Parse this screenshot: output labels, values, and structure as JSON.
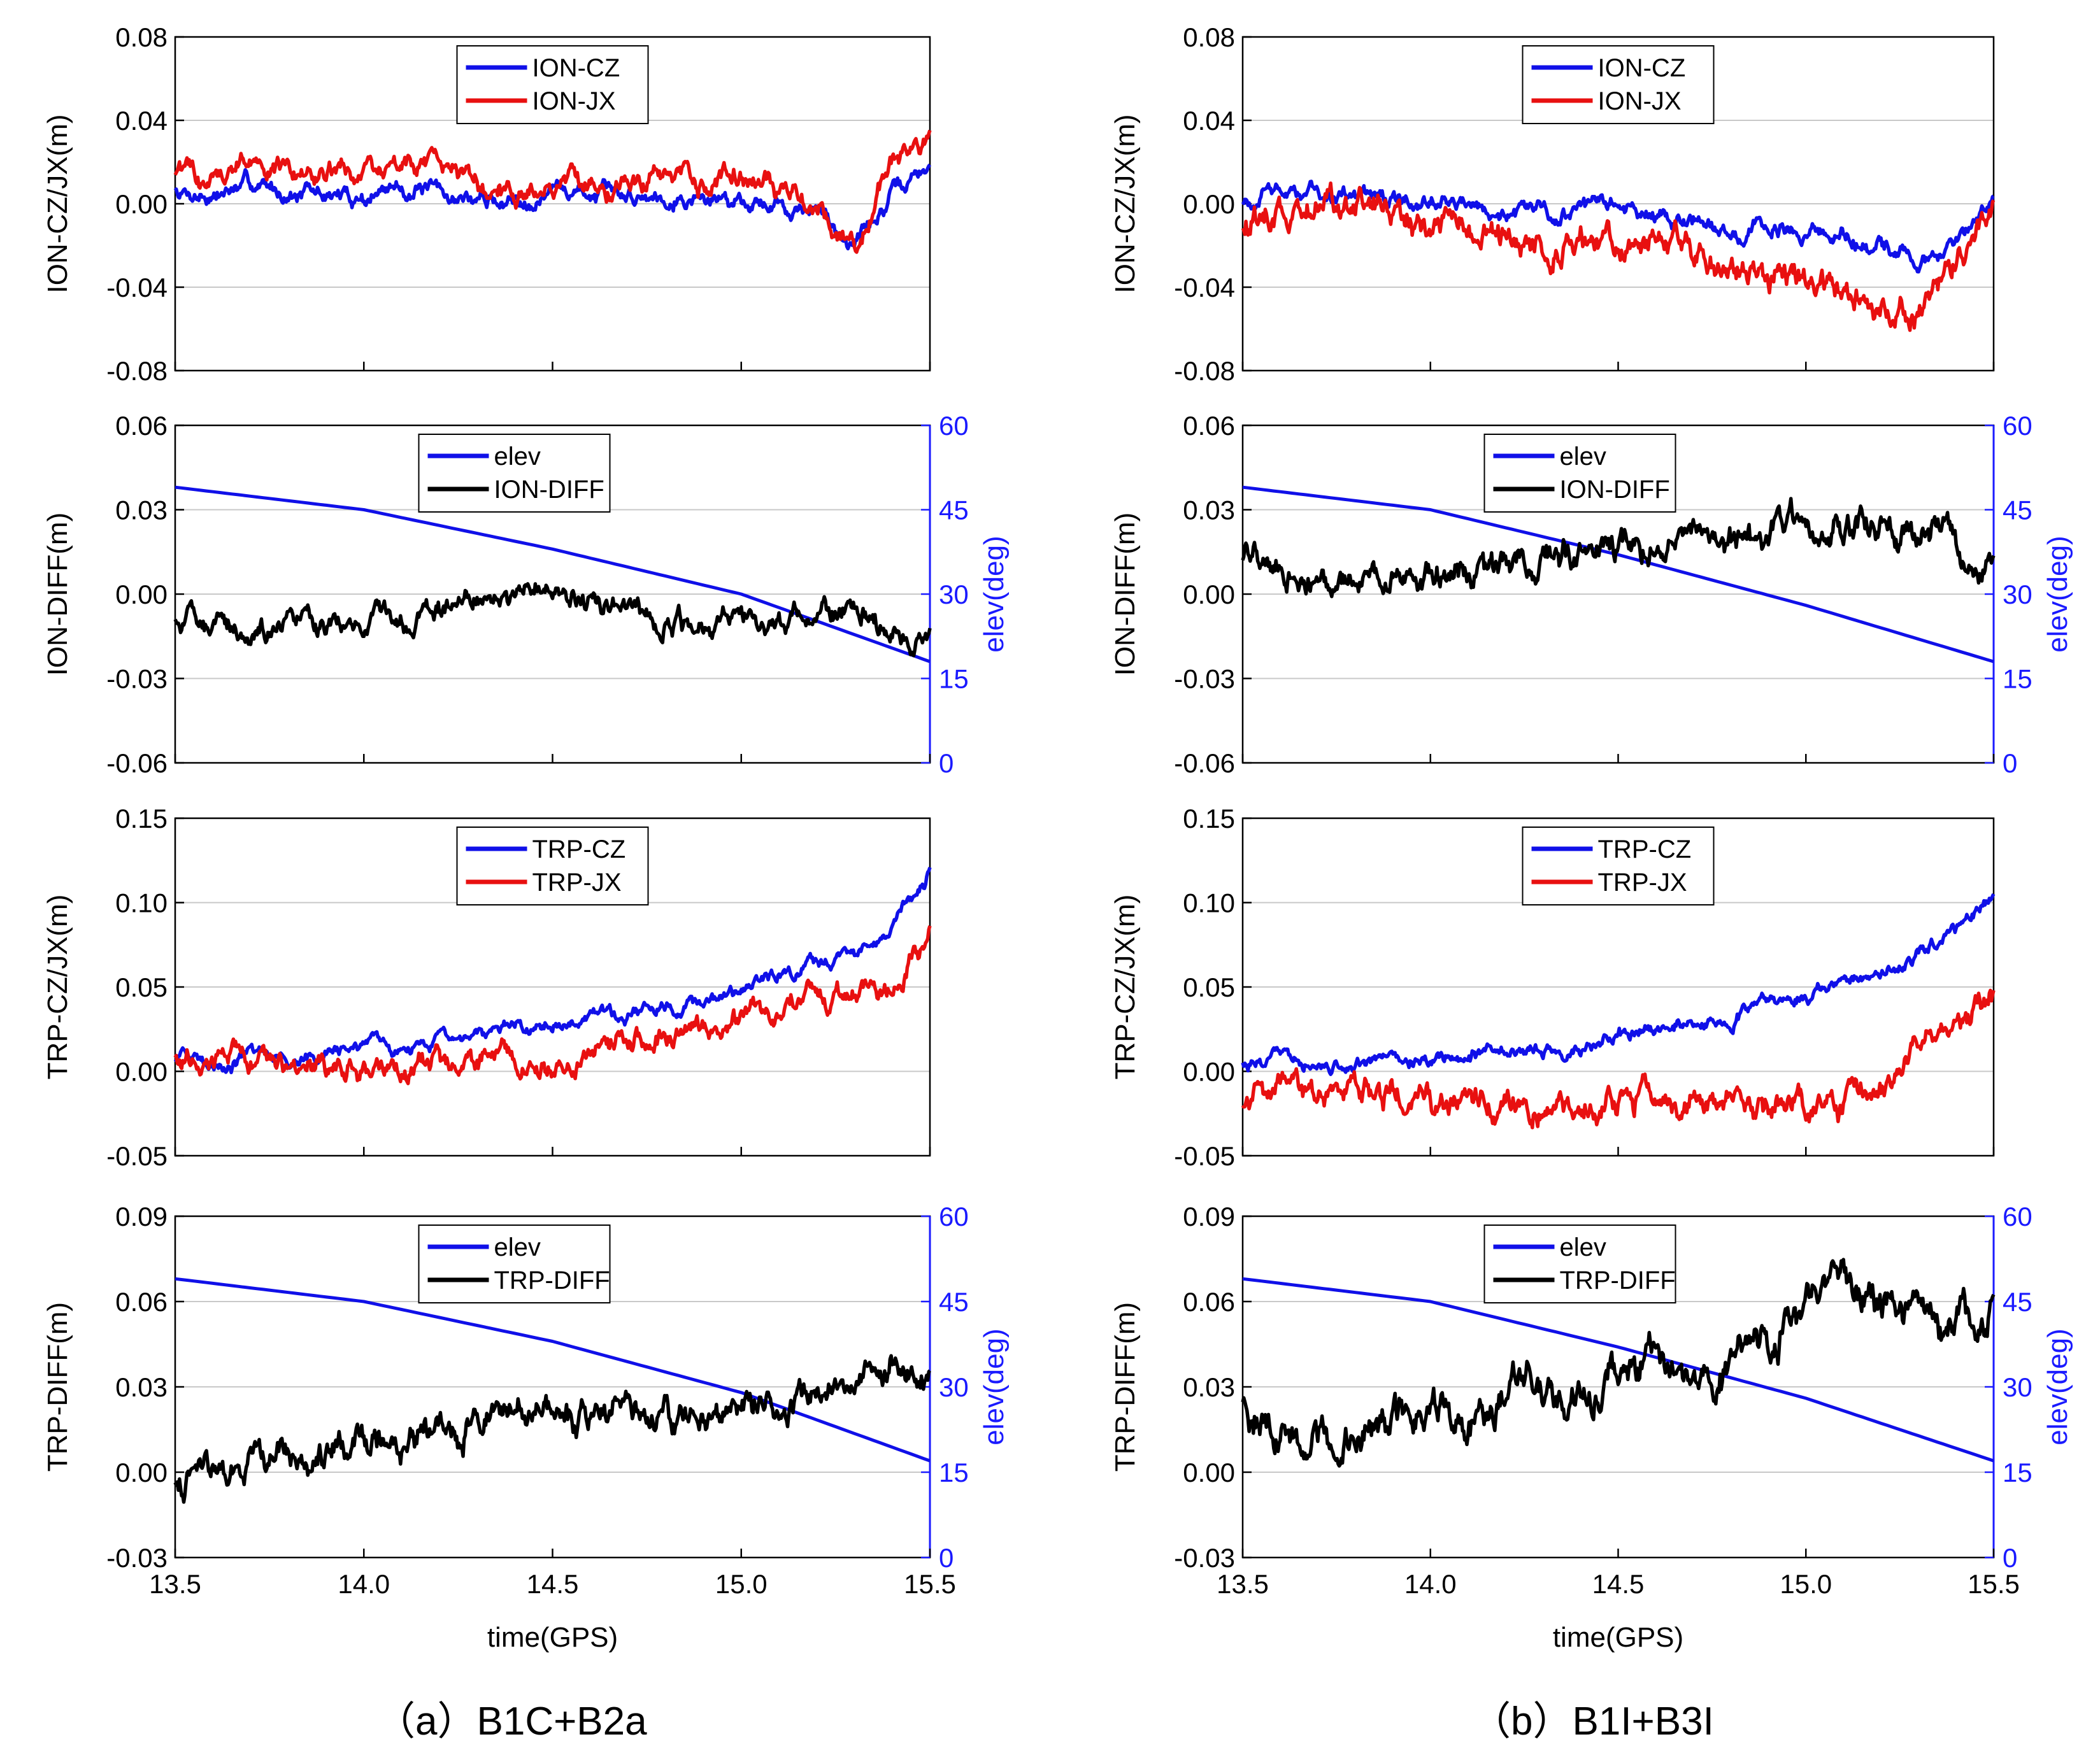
{
  "figure": {
    "captions": [
      "（a）B1C+B2a",
      "（b）B1I+B3I"
    ],
    "x_axis": {
      "label": "time(GPS)",
      "range": [
        13.5,
        15.5
      ],
      "ticks": [
        13.5,
        14.0,
        14.5,
        15.0,
        15.5
      ],
      "tick_labels": [
        "13.5",
        "14.0",
        "14.5",
        "15.0",
        "15.5"
      ]
    },
    "colors": {
      "cz": "#1010e8",
      "jx": "#e81010",
      "diff": "#000000",
      "elev": "#1010e8",
      "right_axis": "#1a1aff"
    }
  },
  "chart_data": [
    {
      "type": "line",
      "panel": "a1",
      "column": "a",
      "row": 0,
      "ylabel": "ION-CZ/JX(m)",
      "ylim": [
        -0.08,
        0.08
      ],
      "yticks": [
        -0.08,
        -0.04,
        0.0,
        0.04,
        0.08
      ],
      "ytick_labels": [
        "-0.08",
        "-0.04",
        "0.00",
        "0.04",
        "0.08"
      ],
      "legend": "top-center",
      "series": [
        {
          "name": "ION-CZ",
          "color": "#1010e8",
          "x": [
            13.5,
            13.6,
            13.7,
            13.8,
            13.9,
            14.0,
            14.1,
            14.2,
            14.3,
            14.4,
            14.5,
            14.6,
            14.7,
            14.8,
            14.9,
            15.0,
            15.1,
            15.2,
            15.3,
            15.4,
            15.5
          ],
          "y": [
            0.007,
            0.004,
            0.009,
            0.006,
            0.004,
            0.003,
            0.008,
            0.004,
            0.002,
            0.001,
            0.007,
            0.005,
            0.003,
            0.005,
            0.002,
            0.003,
            0.0,
            -0.005,
            -0.018,
            0.003,
            0.018
          ],
          "noise": 0.003
        },
        {
          "name": "ION-JX",
          "color": "#e81010",
          "x": [
            13.5,
            13.6,
            13.7,
            13.8,
            13.9,
            14.0,
            14.1,
            14.2,
            14.3,
            14.4,
            14.5,
            14.6,
            14.7,
            14.8,
            14.9,
            15.0,
            15.1,
            15.2,
            15.3,
            15.4,
            15.5
          ],
          "y": [
            0.015,
            0.012,
            0.021,
            0.017,
            0.014,
            0.013,
            0.018,
            0.013,
            0.009,
            0.005,
            0.012,
            0.009,
            0.01,
            0.014,
            0.01,
            0.012,
            0.01,
            -0.002,
            -0.018,
            0.02,
            0.034
          ],
          "noise": 0.004
        }
      ]
    },
    {
      "type": "line",
      "panel": "a2",
      "column": "a",
      "row": 1,
      "ylabel": "ION-DIFF(m)",
      "ylim": [
        -0.06,
        0.06
      ],
      "yticks": [
        -0.06,
        -0.03,
        0.0,
        0.03,
        0.06
      ],
      "ytick_labels": [
        "-0.06",
        "-0.03",
        "0.00",
        "0.03",
        "0.06"
      ],
      "y2label": "elev(deg)",
      "y2lim": [
        0,
        60
      ],
      "y2ticks": [
        0,
        15,
        30,
        45,
        60
      ],
      "y2tick_labels": [
        "0",
        "15",
        "30",
        "45",
        "60"
      ],
      "legend": "top-center",
      "series": [
        {
          "name": "elev",
          "color": "#1010e8",
          "axis": "right",
          "x": [
            13.5,
            14.0,
            14.5,
            15.0,
            15.5
          ],
          "y": [
            49,
            45,
            38,
            30,
            18
          ],
          "noise": 0
        },
        {
          "name": "ION-DIFF",
          "color": "#000000",
          "x": [
            13.5,
            13.6,
            13.7,
            13.8,
            13.9,
            14.0,
            14.1,
            14.2,
            14.3,
            14.4,
            14.5,
            14.6,
            14.7,
            14.8,
            14.9,
            15.0,
            15.1,
            15.2,
            15.3,
            15.4,
            15.5
          ],
          "y": [
            -0.008,
            -0.01,
            -0.013,
            -0.011,
            -0.01,
            -0.01,
            -0.008,
            -0.005,
            -0.003,
            -0.002,
            0.002,
            -0.003,
            -0.006,
            -0.01,
            -0.012,
            -0.006,
            -0.01,
            -0.008,
            -0.004,
            -0.01,
            -0.015
          ],
          "noise": 0.003
        }
      ]
    },
    {
      "type": "line",
      "panel": "a3",
      "column": "a",
      "row": 2,
      "ylabel": "TRP-CZ/JX(m)",
      "ylim": [
        -0.05,
        0.15
      ],
      "yticks": [
        -0.05,
        0.0,
        0.05,
        0.1,
        0.15
      ],
      "ytick_labels": [
        "-0.05",
        "0.00",
        "0.05",
        "0.10",
        "0.15"
      ],
      "legend": "top-center",
      "series": [
        {
          "name": "TRP-CZ",
          "color": "#1010e8",
          "x": [
            13.5,
            13.6,
            13.7,
            13.8,
            13.9,
            14.0,
            14.1,
            14.2,
            14.3,
            14.4,
            14.5,
            14.6,
            14.7,
            14.8,
            14.9,
            15.0,
            15.1,
            15.2,
            15.3,
            15.4,
            15.5
          ],
          "y": [
            0.008,
            0.005,
            0.008,
            0.009,
            0.01,
            0.012,
            0.015,
            0.018,
            0.022,
            0.025,
            0.028,
            0.03,
            0.034,
            0.038,
            0.04,
            0.048,
            0.055,
            0.062,
            0.07,
            0.085,
            0.118
          ],
          "noise": 0.003
        },
        {
          "name": "TRP-JX",
          "color": "#e81010",
          "x": [
            13.5,
            13.6,
            13.7,
            13.8,
            13.9,
            14.0,
            14.1,
            14.2,
            14.3,
            14.4,
            14.5,
            14.6,
            14.7,
            14.8,
            14.9,
            15.0,
            15.1,
            15.2,
            15.3,
            15.4,
            15.5
          ],
          "y": [
            0.01,
            0.004,
            0.01,
            0.005,
            0.003,
            0.002,
            0.003,
            0.002,
            0.004,
            0.008,
            0.0,
            0.012,
            0.015,
            0.02,
            0.025,
            0.03,
            0.04,
            0.045,
            0.05,
            0.045,
            0.085
          ],
          "noise": 0.005
        }
      ]
    },
    {
      "type": "line",
      "panel": "a4",
      "column": "a",
      "row": 3,
      "ylabel": "TRP-DIFF(m)",
      "ylim": [
        -0.03,
        0.09
      ],
      "yticks": [
        -0.03,
        0.0,
        0.03,
        0.06,
        0.09
      ],
      "ytick_labels": [
        "-0.03",
        "0.00",
        "0.03",
        "0.06",
        "0.09"
      ],
      "y2label": "elev(deg)",
      "y2lim": [
        0,
        60
      ],
      "y2ticks": [
        0,
        15,
        30,
        45,
        60
      ],
      "y2tick_labels": [
        "0",
        "15",
        "30",
        "45",
        "60"
      ],
      "legend": "top-center",
      "series": [
        {
          "name": "elev",
          "color": "#1010e8",
          "axis": "right",
          "x": [
            13.5,
            14.0,
            14.5,
            15.0,
            15.5
          ],
          "y": [
            49,
            45,
            38,
            29,
            17
          ],
          "noise": 0
        },
        {
          "name": "TRP-DIFF",
          "color": "#000000",
          "x": [
            13.5,
            13.6,
            13.7,
            13.8,
            13.9,
            14.0,
            14.1,
            14.2,
            14.3,
            14.4,
            14.5,
            14.6,
            14.7,
            14.8,
            14.9,
            15.0,
            15.1,
            15.2,
            15.3,
            15.4,
            15.5
          ],
          "y": [
            -0.002,
            0.003,
            0.001,
            0.005,
            0.008,
            0.01,
            0.012,
            0.016,
            0.018,
            0.022,
            0.02,
            0.018,
            0.022,
            0.02,
            0.018,
            0.02,
            0.025,
            0.028,
            0.032,
            0.038,
            0.035
          ],
          "noise": 0.004
        }
      ]
    },
    {
      "type": "line",
      "panel": "b1",
      "column": "b",
      "row": 0,
      "ylabel": "ION-CZ/JX(m)",
      "ylim": [
        -0.08,
        0.08
      ],
      "yticks": [
        -0.08,
        -0.04,
        0.0,
        0.04,
        0.08
      ],
      "ytick_labels": [
        "-0.08",
        "-0.04",
        "0.00",
        "0.04",
        "0.08"
      ],
      "legend": "top-center",
      "series": [
        {
          "name": "ION-CZ",
          "color": "#1010e8",
          "x": [
            13.5,
            13.6,
            13.7,
            13.8,
            13.9,
            14.0,
            14.1,
            14.2,
            14.3,
            14.4,
            14.5,
            14.6,
            14.7,
            14.8,
            14.9,
            15.0,
            15.1,
            15.2,
            15.3,
            15.4,
            15.5
          ],
          "y": [
            0.002,
            0.003,
            0.005,
            0.002,
            0.0,
            -0.002,
            0.001,
            -0.003,
            -0.005,
            -0.004,
            -0.002,
            -0.005,
            -0.008,
            -0.012,
            -0.01,
            -0.012,
            -0.015,
            -0.02,
            -0.025,
            -0.02,
            0.005
          ],
          "noise": 0.003
        },
        {
          "name": "ION-JX",
          "color": "#e81010",
          "x": [
            13.5,
            13.6,
            13.7,
            13.8,
            13.9,
            14.0,
            14.1,
            14.2,
            14.3,
            14.4,
            14.5,
            14.6,
            14.7,
            14.8,
            14.9,
            15.0,
            15.1,
            15.2,
            15.3,
            15.4,
            15.5
          ],
          "y": [
            -0.012,
            -0.005,
            0.002,
            0.0,
            -0.005,
            -0.01,
            -0.008,
            -0.018,
            -0.02,
            -0.015,
            -0.022,
            -0.015,
            -0.022,
            -0.03,
            -0.035,
            -0.04,
            -0.042,
            -0.05,
            -0.052,
            -0.03,
            0.0
          ],
          "noise": 0.005
        }
      ]
    },
    {
      "type": "line",
      "panel": "b2",
      "column": "b",
      "row": 1,
      "ylabel": "ION-DIFF(m)",
      "ylim": [
        -0.06,
        0.06
      ],
      "yticks": [
        -0.06,
        -0.03,
        0.0,
        0.03,
        0.06
      ],
      "ytick_labels": [
        "-0.06",
        "-0.03",
        "0.00",
        "0.03",
        "0.06"
      ],
      "y2label": "elev(deg)",
      "y2lim": [
        0,
        60
      ],
      "y2ticks": [
        0,
        15,
        30,
        45,
        60
      ],
      "y2tick_labels": [
        "0",
        "15",
        "30",
        "45",
        "60"
      ],
      "legend": "top-center",
      "series": [
        {
          "name": "elev",
          "color": "#1010e8",
          "axis": "right",
          "x": [
            13.5,
            14.0,
            14.5,
            15.0,
            15.5
          ],
          "y": [
            49,
            45,
            37,
            28,
            18
          ],
          "noise": 0
        },
        {
          "name": "ION-DIFF",
          "color": "#000000",
          "x": [
            13.5,
            13.6,
            13.7,
            13.8,
            13.9,
            14.0,
            14.1,
            14.2,
            14.3,
            14.4,
            14.5,
            14.6,
            14.7,
            14.8,
            14.9,
            15.0,
            15.1,
            15.2,
            15.3,
            15.4,
            15.5
          ],
          "y": [
            0.012,
            0.007,
            0.002,
            0.003,
            0.005,
            0.008,
            0.005,
            0.01,
            0.012,
            0.015,
            0.014,
            0.018,
            0.02,
            0.018,
            0.022,
            0.025,
            0.025,
            0.024,
            0.022,
            0.015,
            0.008
          ],
          "noise": 0.004
        }
      ]
    },
    {
      "type": "line",
      "panel": "b3",
      "column": "b",
      "row": 2,
      "ylabel": "TRP-CZ/JX(m)",
      "ylim": [
        -0.05,
        0.15
      ],
      "yticks": [
        -0.05,
        0.0,
        0.05,
        0.1,
        0.15
      ],
      "ytick_labels": [
        "-0.05",
        "0.00",
        "0.05",
        "0.10",
        "0.15"
      ],
      "legend": "top-center",
      "series": [
        {
          "name": "TRP-CZ",
          "color": "#1010e8",
          "x": [
            13.5,
            13.6,
            13.7,
            13.8,
            13.9,
            14.0,
            14.1,
            14.2,
            14.3,
            14.4,
            14.5,
            14.6,
            14.7,
            14.8,
            14.9,
            15.0,
            15.1,
            15.2,
            15.3,
            15.4,
            15.5
          ],
          "y": [
            0.005,
            0.008,
            0.006,
            0.005,
            0.006,
            0.005,
            0.008,
            0.012,
            0.013,
            0.015,
            0.02,
            0.025,
            0.032,
            0.03,
            0.04,
            0.045,
            0.055,
            0.06,
            0.068,
            0.085,
            0.105
          ],
          "noise": 0.003
        },
        {
          "name": "TRP-JX",
          "color": "#e81010",
          "x": [
            13.5,
            13.6,
            13.7,
            13.8,
            13.9,
            14.0,
            14.1,
            14.2,
            14.3,
            14.4,
            14.5,
            14.6,
            14.7,
            14.8,
            14.9,
            15.0,
            15.1,
            15.2,
            15.3,
            15.4,
            15.5
          ],
          "y": [
            -0.02,
            -0.01,
            -0.015,
            -0.01,
            -0.015,
            -0.02,
            -0.015,
            -0.018,
            -0.02,
            -0.022,
            -0.02,
            -0.015,
            -0.018,
            -0.02,
            -0.022,
            -0.015,
            -0.02,
            -0.01,
            0.015,
            0.03,
            0.045
          ],
          "noise": 0.006
        }
      ]
    },
    {
      "type": "line",
      "panel": "b4",
      "column": "b",
      "row": 3,
      "ylabel": "TRP-DIFF(m)",
      "ylim": [
        -0.03,
        0.09
      ],
      "yticks": [
        -0.03,
        0.0,
        0.03,
        0.06,
        0.09
      ],
      "ytick_labels": [
        "-0.03",
        "0.00",
        "0.03",
        "0.06",
        "0.09"
      ],
      "y2label": "elev(deg)",
      "y2lim": [
        0,
        60
      ],
      "y2ticks": [
        0,
        15,
        30,
        45,
        60
      ],
      "y2tick_labels": [
        "0",
        "15",
        "30",
        "45",
        "60"
      ],
      "legend": "top-center",
      "series": [
        {
          "name": "elev",
          "color": "#1010e8",
          "axis": "right",
          "x": [
            13.5,
            14.0,
            14.5,
            15.0,
            15.5
          ],
          "y": [
            49,
            45,
            37,
            28,
            17
          ],
          "noise": 0
        },
        {
          "name": "TRP-DIFF",
          "color": "#000000",
          "x": [
            13.5,
            13.6,
            13.7,
            13.8,
            13.9,
            14.0,
            14.1,
            14.2,
            14.3,
            14.4,
            14.5,
            14.6,
            14.7,
            14.8,
            14.9,
            15.0,
            15.1,
            15.2,
            15.3,
            15.4,
            15.5
          ],
          "y": [
            0.025,
            0.015,
            0.01,
            0.015,
            0.02,
            0.025,
            0.02,
            0.025,
            0.03,
            0.028,
            0.035,
            0.04,
            0.03,
            0.035,
            0.045,
            0.06,
            0.065,
            0.06,
            0.055,
            0.05,
            0.055
          ],
          "noise": 0.005
        }
      ]
    }
  ]
}
